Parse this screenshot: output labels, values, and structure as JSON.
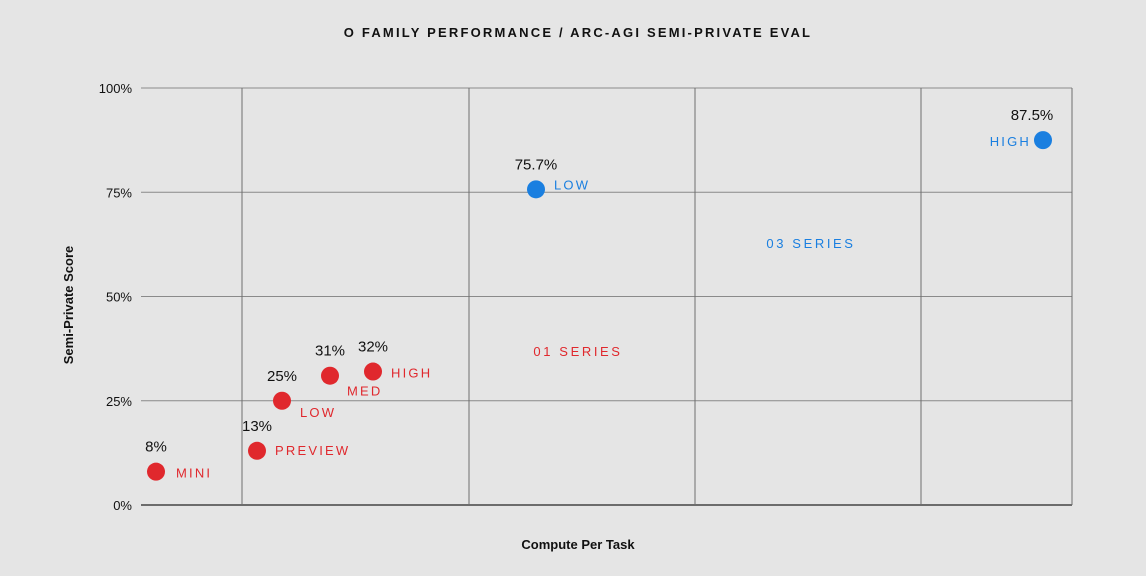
{
  "chart_data": {
    "type": "scatter",
    "title": "O FAMILY PERFORMANCE / ARC-AGI SEMI-PRIVATE EVAL",
    "xlabel": "Compute Per Task",
    "ylabel": "Semi-Private Score",
    "ylim": [
      0,
      100
    ],
    "y_ticks": [
      {
        "value": 0,
        "label": "0%"
      },
      {
        "value": 25,
        "label": "25%"
      },
      {
        "value": 50,
        "label": "50%"
      },
      {
        "value": 75,
        "label": "75%"
      },
      {
        "value": 100,
        "label": "100%"
      }
    ],
    "grid": true,
    "series": [
      {
        "name": "01 SERIES",
        "color": "#e0282d",
        "points": [
          {
            "label": "MINI",
            "value_label": "8%",
            "y": 8
          },
          {
            "label": "PREVIEW",
            "value_label": "13%",
            "y": 13
          },
          {
            "label": "LOW",
            "value_label": "25%",
            "y": 25
          },
          {
            "label": "MED",
            "value_label": "31%",
            "y": 31
          },
          {
            "label": "HIGH",
            "value_label": "32%",
            "y": 32
          }
        ]
      },
      {
        "name": "03 SERIES",
        "color": "#1a7fe0",
        "points": [
          {
            "label": "LOW",
            "value_label": "75.7%",
            "y": 75.7
          },
          {
            "label": "HIGH",
            "value_label": "87.5%",
            "y": 87.5
          }
        ]
      }
    ]
  }
}
